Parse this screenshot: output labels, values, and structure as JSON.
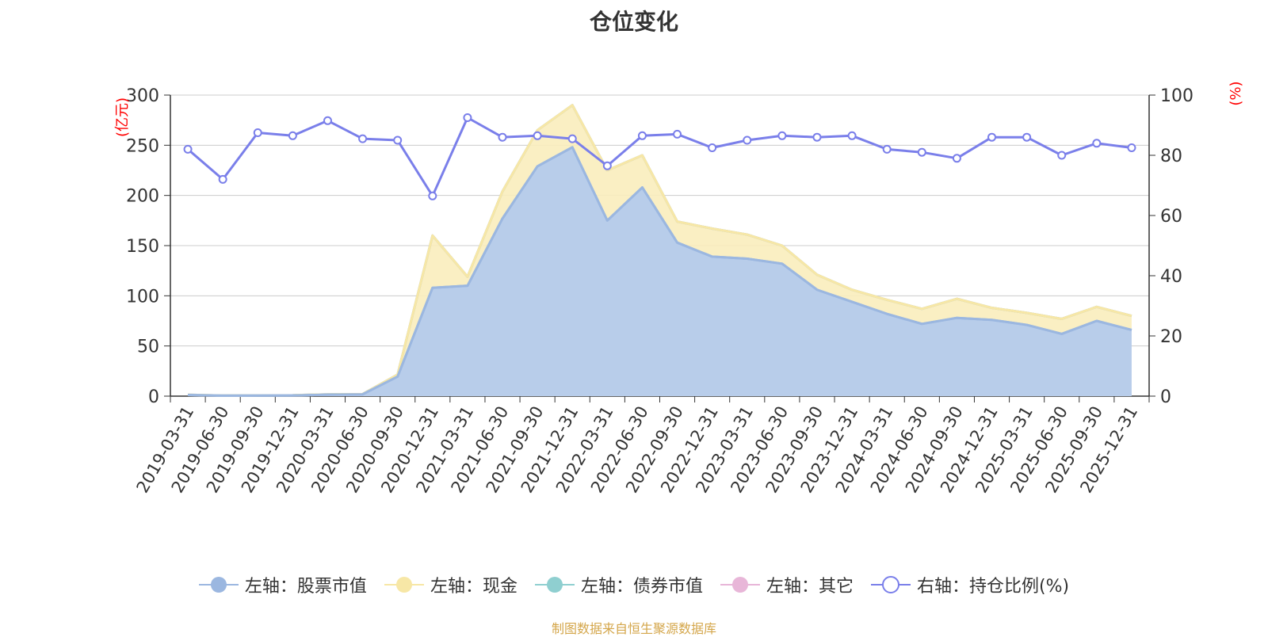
{
  "chart_data": {
    "type": "area",
    "title": "仓位变化",
    "categories": [
      "2019-03-31",
      "2019-06-30",
      "2019-09-30",
      "2019-12-31",
      "2020-03-31",
      "2020-06-30",
      "2020-09-30",
      "2020-12-31",
      "2021-03-31",
      "2021-06-30",
      "2021-09-30",
      "2021-12-31",
      "2022-03-31",
      "2022-06-30",
      "2022-09-30",
      "2022-12-31",
      "2023-03-31",
      "2023-06-30",
      "2023-09-30",
      "2023-12-31",
      "2024-03-31",
      "2024-06-30",
      "2024-09-30",
      "2024-12-31",
      "2025-03-31",
      "2025-06-30",
      "2025-09-30",
      "2025-12-31"
    ],
    "left_axis": {
      "unit": "(亿元)",
      "ylim": [
        0,
        300
      ],
      "ticks": [
        0,
        50,
        100,
        150,
        200,
        250,
        300
      ]
    },
    "right_axis": {
      "unit": "(%)",
      "ylim": [
        0,
        100
      ],
      "ticks": [
        0,
        20,
        40,
        60,
        80,
        100
      ]
    },
    "stack_order": [
      "stock",
      "cash",
      "bond",
      "other"
    ],
    "series": [
      {
        "id": "stock",
        "name": "左轴：股票市值",
        "axis": "left",
        "color": "#9bb7e0",
        "fill": "#b8cdea",
        "values": [
          1.2,
          0.5,
          0.6,
          0.7,
          1.5,
          1.8,
          19.5,
          108,
          110,
          177,
          229,
          248,
          175,
          208,
          153,
          139,
          137,
          132,
          106,
          94,
          82,
          72,
          78,
          76,
          71,
          62,
          75,
          66
        ]
      },
      {
        "id": "cash",
        "name": "左轴：现金",
        "axis": "left",
        "color": "#f7e7a6",
        "fill": "#faedbd",
        "values": [
          0.2,
          0.1,
          0.2,
          0.2,
          0.3,
          0.3,
          2,
          52,
          9,
          27,
          36,
          42,
          50,
          32,
          21,
          28,
          24,
          18,
          15,
          12,
          14,
          15,
          19,
          12,
          12,
          15,
          14,
          14
        ]
      },
      {
        "id": "bond",
        "name": "左轴：债券市值",
        "axis": "left",
        "color": "#8fcfd0",
        "fill": "#8fcfd0",
        "values": [
          0,
          0,
          0,
          0,
          0,
          0,
          0,
          0,
          0,
          0,
          0,
          0,
          0,
          0,
          0,
          0,
          0,
          0,
          0,
          0,
          0,
          0,
          0,
          0,
          0,
          0,
          0,
          0
        ]
      },
      {
        "id": "other",
        "name": "左轴：其它",
        "axis": "left",
        "color": "#e8b6d8",
        "fill": "#e8b6d8",
        "values": [
          0,
          0,
          0,
          0,
          0,
          0,
          0,
          0,
          0,
          0,
          0,
          0,
          0,
          0,
          0,
          0,
          0,
          0,
          0,
          0,
          0,
          0,
          0,
          0,
          0,
          0,
          0,
          0
        ]
      },
      {
        "id": "ratio",
        "name": "右轴：持仓比例(%)",
        "axis": "right",
        "type": "line",
        "color": "#7a7fea",
        "values": [
          82,
          72,
          87.5,
          86.5,
          91.5,
          85.5,
          85,
          66.5,
          92.5,
          86,
          86.5,
          85.5,
          76.5,
          86.5,
          87,
          82.5,
          85,
          86.5,
          86,
          86.5,
          82,
          81,
          79,
          86,
          86,
          80,
          84,
          82.5
        ]
      }
    ]
  },
  "source_note": "制图数据来自恒生聚源数据库",
  "colors": {
    "grid": "#cccccc",
    "axis": "#333333",
    "unit": "#ff0000"
  }
}
